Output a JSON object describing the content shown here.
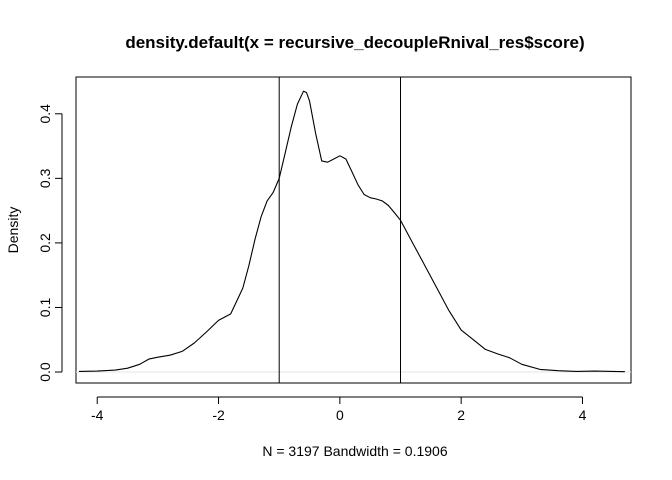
{
  "chart_data": {
    "type": "line",
    "title": "density.default(x = recursive_decoupleRnival_res$score)",
    "xlabel": "N = 3197   Bandwidth = 0.1906",
    "ylabel": "Density",
    "xlim": [
      -4.35,
      4.8
    ],
    "ylim": [
      -0.017,
      0.457
    ],
    "x_ticks": [
      -4,
      -2,
      0,
      2,
      4
    ],
    "x_tick_labels": [
      "-4",
      "-2",
      "0",
      "2",
      "4"
    ],
    "y_ticks": [
      0.0,
      0.1,
      0.2,
      0.3,
      0.4
    ],
    "y_tick_labels": [
      "0.0",
      "0.1",
      "0.2",
      "0.3",
      "0.4"
    ],
    "vlines": [
      -1,
      1
    ],
    "zero_line": true,
    "grid": false,
    "series": [
      {
        "x": [
          -4.3,
          -4.0,
          -3.7,
          -3.5,
          -3.3,
          -3.15,
          -3.0,
          -2.8,
          -2.6,
          -2.4,
          -2.2,
          -2.0,
          -1.8,
          -1.6,
          -1.5,
          -1.4,
          -1.3,
          -1.2,
          -1.1,
          -1.0,
          -0.9,
          -0.8,
          -0.7,
          -0.6,
          -0.55,
          -0.5,
          -0.4,
          -0.3,
          -0.2,
          -0.1,
          0.0,
          0.1,
          0.2,
          0.3,
          0.4,
          0.5,
          0.6,
          0.7,
          0.8,
          0.9,
          1.0,
          1.2,
          1.4,
          1.6,
          1.8,
          2.0,
          2.2,
          2.4,
          2.6,
          2.8,
          3.0,
          3.3,
          3.6,
          3.9,
          4.2,
          4.7
        ],
        "y": [
          0.001,
          0.0015,
          0.003,
          0.006,
          0.012,
          0.02,
          0.023,
          0.026,
          0.032,
          0.045,
          0.062,
          0.08,
          0.09,
          0.13,
          0.165,
          0.205,
          0.24,
          0.265,
          0.278,
          0.3,
          0.34,
          0.38,
          0.415,
          0.435,
          0.433,
          0.42,
          0.37,
          0.327,
          0.325,
          0.33,
          0.335,
          0.33,
          0.31,
          0.29,
          0.275,
          0.27,
          0.268,
          0.265,
          0.258,
          0.247,
          0.235,
          0.2,
          0.165,
          0.13,
          0.095,
          0.065,
          0.05,
          0.035,
          0.028,
          0.022,
          0.012,
          0.004,
          0.002,
          0.001,
          0.0015,
          0.0005
        ]
      }
    ]
  }
}
